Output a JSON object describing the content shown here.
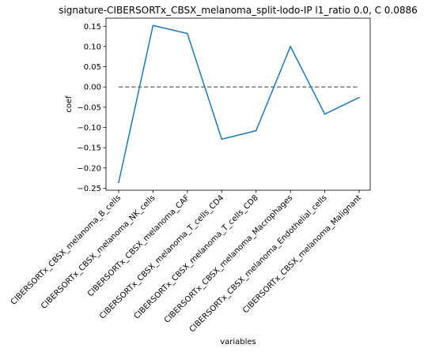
{
  "chart_data": {
    "type": "line",
    "title": "signature-CIBERSORTx_CBSX_melanoma_split-lodo-IP l1_ratio 0.0, C 0.0886",
    "xlabel": "variables",
    "ylabel": "coef",
    "categories": [
      "CIBERSORTx_CBSX_melanoma_B_cells",
      "CIBERSORTx_CBSX_melanoma_NK_cells",
      "CIBERSORTx_CBSX_melanoma_CAF",
      "CIBERSORTx_CBSX_melanoma_T_cells_CD4",
      "CIBERSORTx_CBSX_melanoma_T_cells_CD8",
      "CIBERSORTx_CBSX_melanoma_Macrophages",
      "CIBERSORTx_CBSX_melanoma_Endothelial_cells",
      "CIBERSORTx_CBSX_melanoma_Malignant"
    ],
    "series": [
      {
        "values": [
          -0.236,
          0.152,
          0.132,
          -0.129,
          -0.108,
          0.1,
          -0.067,
          -0.026
        ],
        "color": "#1f77b4"
      }
    ],
    "reference_line": {
      "y": 0.0,
      "style": "dashed",
      "color": "#808080"
    },
    "yticks": [
      0.15,
      0.1,
      0.05,
      0.0,
      -0.05,
      -0.1,
      -0.15,
      -0.2,
      -0.25
    ],
    "ytick_labels": [
      "0.15",
      "0.10",
      "0.05",
      "0.00",
      "−0.05",
      "−0.10",
      "−0.15",
      "−0.20",
      "−0.25"
    ],
    "ylim": [
      -0.255,
      0.17
    ],
    "grid": false,
    "legend": false
  }
}
